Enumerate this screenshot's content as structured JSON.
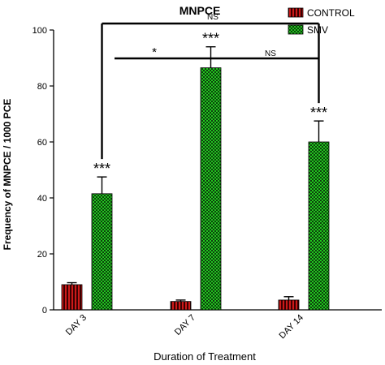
{
  "chart_data": {
    "type": "bar",
    "title": "MNPCE",
    "xlabel": "Duration of Treatment",
    "ylabel": "Frequency of MNPCE / 1000 PCE",
    "ylim": [
      0,
      100
    ],
    "yticks": [
      "0",
      "20",
      "40",
      "60",
      "80",
      "100"
    ],
    "categories": [
      "DAY 3",
      "DAY 7",
      "DAY 14"
    ],
    "legend_position": "top-right",
    "series": [
      {
        "name": "CONTROL",
        "values": [
          9,
          3,
          3.5
        ],
        "errors": [
          0.7,
          0.5,
          1.2
        ],
        "color": "#cc1a1a",
        "pattern": "vertical-stripes"
      },
      {
        "name": "SMV",
        "values": [
          41.5,
          86.5,
          60
        ],
        "errors": [
          6,
          7.5,
          7.5
        ],
        "color": "#22c41f",
        "pattern": "checker"
      }
    ],
    "significance": [
      {
        "category": "DAY 3",
        "label": "***"
      },
      {
        "category": "DAY 7",
        "label": "***"
      },
      {
        "category": "DAY 14",
        "label": "***"
      }
    ],
    "comparison_brackets": [
      {
        "from": "DAY 3",
        "to": "DAY 14",
        "label": "NS"
      },
      {
        "from": "DAY 3",
        "to": "DAY 7",
        "label": "*"
      },
      {
        "from": "DAY 7",
        "to": "DAY 14",
        "label": "NS"
      }
    ]
  }
}
